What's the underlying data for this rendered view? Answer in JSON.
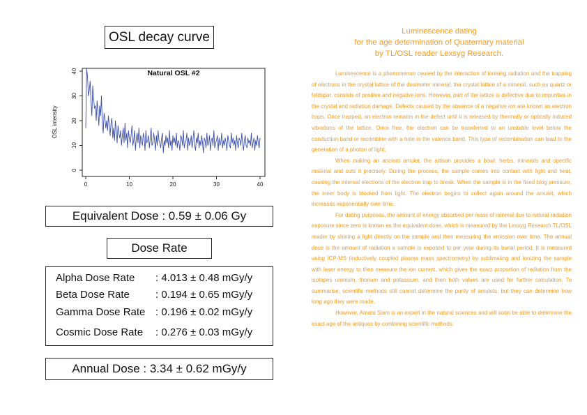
{
  "panel_title": "OSL decay curve",
  "chart_data": {
    "type": "line",
    "title": "Natural OSL #2",
    "xlabel": "",
    "ylabel": "OSL intensity",
    "xlim": [
      0,
      40
    ],
    "ylim": [
      0,
      40
    ],
    "xticks": [
      0,
      10,
      20,
      30,
      40
    ],
    "yticks": [
      0,
      10,
      20,
      30,
      40
    ],
    "grid": false,
    "series": [
      {
        "color": "#3b4fa8",
        "x_start": 0,
        "x_step": 0.2,
        "values": [
          17,
          41,
          38,
          30,
          32,
          36,
          28,
          22,
          34,
          29,
          25,
          26,
          20,
          28,
          24,
          18,
          26,
          22,
          30,
          19,
          15,
          23,
          21,
          17,
          20,
          16,
          22,
          18,
          14,
          19,
          21,
          13,
          17,
          12,
          20,
          16,
          11,
          18,
          15,
          13,
          16,
          10,
          14,
          17,
          11,
          19,
          12,
          15,
          9,
          16,
          13,
          11,
          14,
          18,
          10,
          12,
          16,
          8,
          13,
          15,
          11,
          17,
          9,
          14,
          12,
          10,
          15,
          13,
          8,
          16,
          11,
          12,
          14,
          9,
          13,
          17,
          10,
          11,
          15,
          12,
          8,
          14,
          10,
          16,
          12,
          11,
          9,
          13,
          15,
          7,
          12,
          10,
          14,
          11,
          13,
          9,
          16,
          10,
          12,
          8,
          14,
          11,
          13,
          10,
          15,
          9,
          12,
          11,
          8,
          14,
          13,
          10,
          16,
          9,
          11,
          12,
          15,
          8,
          13,
          10,
          11,
          14,
          9,
          12,
          16,
          10,
          8,
          13,
          11,
          15,
          9,
          12,
          10,
          14,
          11,
          7,
          13,
          12,
          9,
          15,
          10,
          11,
          14,
          8,
          12,
          13,
          10,
          16,
          9,
          11,
          12,
          14,
          8,
          13,
          10,
          11,
          15,
          9,
          12,
          10,
          13,
          11,
          8,
          14,
          12,
          10,
          9,
          15,
          11,
          13,
          10,
          12,
          8,
          14,
          11,
          9,
          13,
          12,
          10,
          15,
          11,
          8,
          12,
          14,
          10,
          9,
          13,
          11,
          12,
          10,
          15,
          9,
          11,
          13,
          8,
          12,
          10,
          14,
          11,
          9,
          13
        ]
      }
    ]
  },
  "equivalent_dose": "Equivalent Dose : 0.59 ± 0.06 Gy",
  "dose_rate_heading": "Dose Rate",
  "dose_rates": [
    {
      "name": "Alpha Dose Rate",
      "value": ": 4.013 ± 0.48 mGy/y"
    },
    {
      "name": "Beta Dose Rate",
      "value": ": 0.194 ± 0.65 mGy/y"
    },
    {
      "name": "Gamma Dose Rate",
      "value": ": 0.196 ± 0.02 mGy/y"
    },
    {
      "name": "Cosmic Dose Rate",
      "value": ": 0.276 ± 0.03 mGy/y"
    }
  ],
  "annual_dose": "Annual Dose : 3.34 ± 0.62 mGy/y",
  "article": {
    "title_lines": [
      "Luminescence dating",
      "for the age determination of Quaternary material",
      "by TL/OSL reader Lexsyg Research."
    ],
    "paragraphs": [
      "Luminescence is a phenomenon caused by the interaction of ionising radiation and the trapping of electrons in the crystal lattice of the dosimeter mineral. the crystal lattice of a mineral, such as quartz or feldspar, consists of positive and negative ions. However, part of the lattice is defective due to impurities in the crystal and radiation damage. Defects caused by the absence of a negative ion are known as electron traps. Once trapped, an electron remains in the defect until it is released by thermally or optically induced vibrations of the lattice. Once free, the electron can be transferred to an unstable level below the conduction band or recombine with a hole in the valence band. This type of recombination can lead to the generation of a photon of light.",
      "When making an ancient amulet, the artisan provides a bowl, herbs, minerals and specific material and cuts it precisely. During the process, the sample comes into contact with light and heat, causing the internal electrons of the electron trap to break. When the sample is in the fixed blog pressure, the inner body is blocked from light. The electron begins to collect again around the amulet, which increases exponentially over time.",
      "For dating purposes, the amount of energy absorbed per mass of mineral due to natural radiation exposure since zero is known as the equivalent dose, which is measured by the Lexsyg Research TL/OSL reader by shining a light directly on the sample and then measuring the emission over time. The annual dose is the amount of radiation a sample is exposed to per year during its burial period. It is measured using ICP-MS (inductively coupled plasma mass spectrometry) by sublimating and ionizing the sample with laser energy to then measure the ion current, which gives the exact proportion of radiation from the isotopes uranium, thorium and potassium, and then both values are used for further calculation. To summarise, scientific methods still cannot determine the purity of amulets, but they can determine how long ago they were made.",
      "However, Amata Siam is an expert in the natural sciences and will soon be able to determine the exact age of the antiques by combining scientific methods."
    ]
  }
}
